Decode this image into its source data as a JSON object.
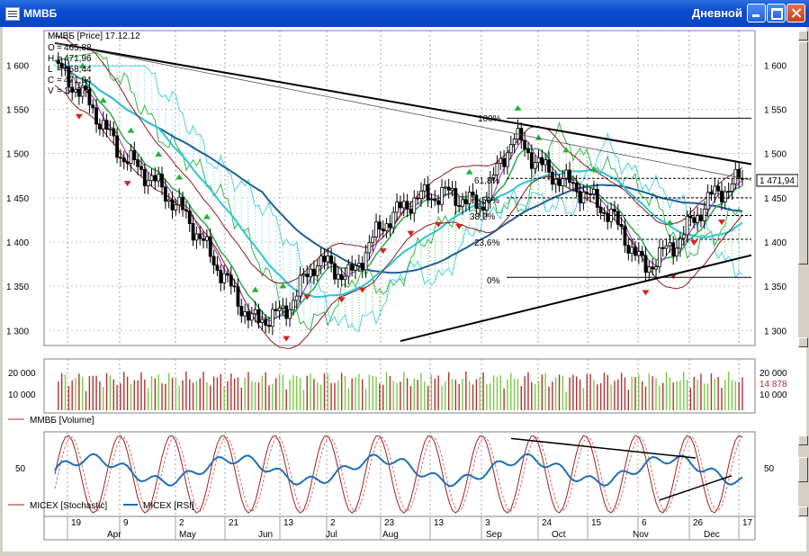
{
  "window": {
    "title": "ММВБ",
    "mode": "Дневной"
  },
  "price_panel": {
    "legend": {
      "header": "ММВБ [Price] 17.12.12",
      "rows": [
        {
          "key": "O",
          "value": "465,88"
        },
        {
          "key": "H",
          "value": "471,96"
        },
        {
          "key": "L",
          "value": "458,44"
        },
        {
          "key": "C",
          "value": "471,94"
        },
        {
          "key": "V",
          "value": "14 878"
        }
      ]
    },
    "yticks": [
      "1 600",
      "1 550",
      "1 500",
      "1 450",
      "1 400",
      "1 350",
      "1 300"
    ],
    "last_price_label": "1 471,94",
    "fib_labels": [
      "100%",
      "61,8%",
      "50%",
      "38,2%",
      "23,6%",
      "0%"
    ]
  },
  "volume_panel": {
    "yticks": [
      "20 000",
      "10 000"
    ],
    "last_volume_label": "14 878",
    "legend": "ММВБ [Volume]"
  },
  "oscillator_panel": {
    "ytick": "50",
    "legend_items": [
      "MICEX [Stochastic]",
      "MICEX [RSI]"
    ]
  },
  "x_axis": {
    "days": [
      "19",
      "9",
      "2",
      "21",
      "13",
      "2",
      "23",
      "13",
      "3",
      "24",
      "15",
      "6",
      "26",
      "17"
    ],
    "months": [
      "Apr",
      "May",
      "Jun",
      "Jul",
      "Aug",
      "Sep",
      "Oct",
      "Nov",
      "Dec"
    ]
  },
  "colors": {
    "up_bar": "#000000",
    "volume_up": "#7ac943",
    "volume_down": "#b03030",
    "ema_long": "#1f5f99",
    "ema_mid": "#2ec4d8",
    "ichimoku": "#3ab54a",
    "rsi": "#1f6fb5",
    "stochastic": "#a02020"
  },
  "chart_data": {
    "type": "candlestick",
    "title": "ММВБ [Price] 17.12.12",
    "ylim": [
      1285,
      1635
    ],
    "x": [
      "2012-03-05",
      "2012-03-19",
      "2012-04-02",
      "2012-04-16",
      "2012-04-30",
      "2012-05-14",
      "2012-05-28",
      "2012-06-11",
      "2012-06-25",
      "2012-07-09",
      "2012-07-23",
      "2012-08-06",
      "2012-08-20",
      "2012-09-03",
      "2012-09-17",
      "2012-10-01",
      "2012-10-15",
      "2012-10-29",
      "2012-11-12",
      "2012-11-26",
      "2012-12-10",
      "2012-12-17"
    ],
    "close": [
      1600,
      1560,
      1500,
      1470,
      1430,
      1370,
      1310,
      1320,
      1380,
      1360,
      1420,
      1450,
      1455,
      1440,
      1520,
      1480,
      1460,
      1430,
      1370,
      1400,
      1450,
      1471.94
    ],
    "last": {
      "open": 1465.88,
      "high": 1471.96,
      "low": 1458.44,
      "close": 1471.94,
      "volume": 14878
    },
    "fibonacci": {
      "0%": 1360,
      "23.6%": 1403,
      "38.2%": 1430,
      "50%": 1450,
      "61.8%": 1472,
      "100%": 1540
    },
    "volume_ylim": [
      0,
      25000
    ],
    "oscillators": {
      "series": [
        "MICEX [Stochastic]",
        "MICEX [RSI]"
      ],
      "ylim": [
        0,
        100
      ]
    }
  }
}
